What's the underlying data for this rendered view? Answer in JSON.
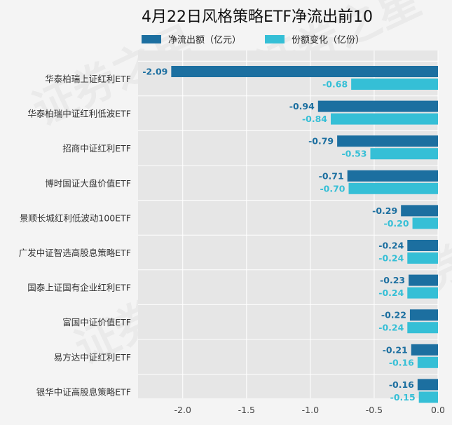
{
  "chart_data": {
    "type": "bar",
    "orientation": "horizontal",
    "title": "4月22日风格策略ETF净流出前10",
    "categories": [
      "华泰柏瑞上证红利ETF",
      "华泰柏瑞中证红利低波ETF",
      "招商中证红利ETF",
      "博时国证大盘价值ETF",
      "景顺长城红利低波动100ETF",
      "广发中证智选高股息策略ETF",
      "国泰上证国有企业红利ETF",
      "富国中证价值ETF",
      "易方达中证红利ETF",
      "银华中证高股息策略ETF"
    ],
    "series": [
      {
        "name": "净流出额（亿元）",
        "color": "#1c6fa0",
        "values": [
          -2.09,
          -0.94,
          -0.79,
          -0.71,
          -0.29,
          -0.24,
          -0.23,
          -0.22,
          -0.21,
          -0.16
        ],
        "labels": [
          "-2.09",
          "-0.94",
          "-0.79",
          "-0.71",
          "-0.29",
          "-0.24",
          "-0.23",
          "-0.22",
          "-0.21",
          "-0.16"
        ]
      },
      {
        "name": "份额变化（亿份）",
        "color": "#35bfd6",
        "values": [
          -0.68,
          -0.84,
          -0.53,
          -0.7,
          -0.2,
          -0.24,
          -0.24,
          -0.24,
          -0.16,
          -0.15
        ],
        "labels": [
          "-0.68",
          "-0.84",
          "-0.53",
          "-0.70",
          "-0.20",
          "-0.24",
          "-0.24",
          "-0.24",
          "-0.16",
          "-0.15"
        ]
      }
    ],
    "xlim": [
      -2.35,
      0
    ],
    "xticks": [
      -2.0,
      -1.5,
      -1.0,
      -0.5,
      0.0
    ],
    "xtick_labels": [
      "-2.0",
      "-1.5",
      "-1.0",
      "-0.5",
      "0.0"
    ],
    "grid": true,
    "legend_position": "top"
  },
  "watermark": "证券之星"
}
